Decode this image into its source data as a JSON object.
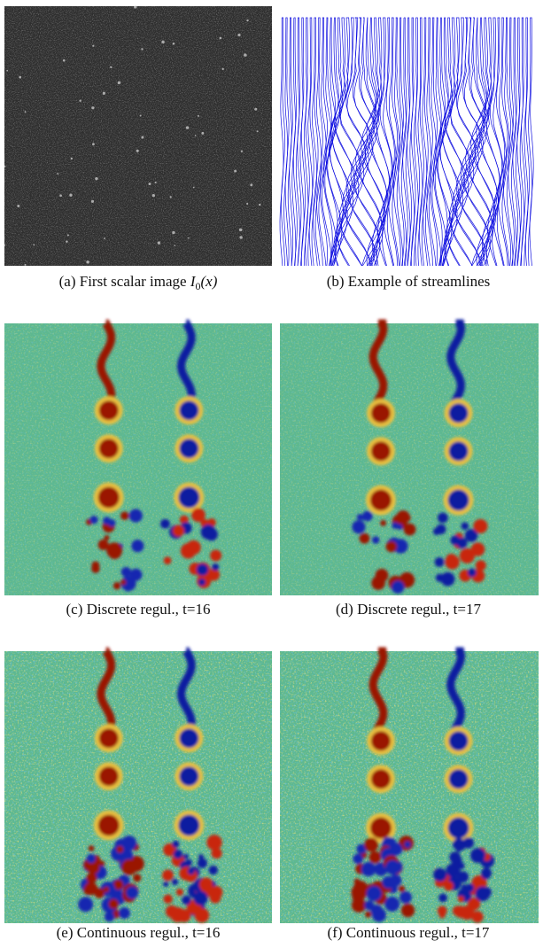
{
  "figure": {
    "panels": [
      {
        "label": "(a)",
        "caption": "First scalar image",
        "math": {
          "symbol": "I",
          "subscript": "0",
          "argument": "(x)"
        }
      },
      {
        "label": "(b)",
        "caption": "Example of streamlines"
      },
      {
        "label": "(c)",
        "caption": "Discrete regul., t=16"
      },
      {
        "label": "(d)",
        "caption": "Discrete regul., t=17"
      },
      {
        "label": "(e)",
        "caption": "Continuous regul., t=16"
      },
      {
        "label": "(f)",
        "caption": "Continuous regul., t=17"
      }
    ]
  }
}
